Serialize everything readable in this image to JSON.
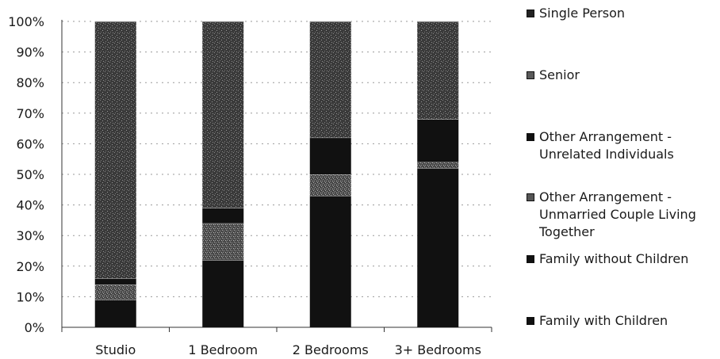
{
  "chart_data": {
    "type": "bar",
    "stacked": true,
    "stack_mode": "percent",
    "categories": [
      "Studio",
      "1 Bedroom",
      "2 Bedrooms",
      "3+ Bedrooms"
    ],
    "series": [
      {
        "name": "Family with Children",
        "values": [
          9,
          22,
          43,
          52
        ],
        "color": "#111111"
      },
      {
        "name": "Family without Children",
        "values": [
          0,
          0,
          0,
          0
        ],
        "color": "#1a1a1a"
      },
      {
        "name": "Other Arrangement - Unmarried Couple Living Together",
        "values": [
          5,
          12,
          7,
          2
        ],
        "color": "#3e3e3e"
      },
      {
        "name": "Other Arrangement - Unrelated Individuals",
        "values": [
          2,
          5,
          12,
          14
        ],
        "color": "#111111"
      },
      {
        "name": "Senior",
        "values": [
          0,
          0,
          0,
          0
        ],
        "color": "#555555"
      },
      {
        "name": "Single Person",
        "values": [
          84,
          61,
          38,
          32
        ],
        "color": "#333333"
      }
    ],
    "yticks": [
      "0%",
      "10%",
      "20%",
      "30%",
      "40%",
      "50%",
      "60%",
      "70%",
      "80%",
      "90%",
      "100%"
    ],
    "ylim": [
      0,
      100
    ],
    "grid": true,
    "legend_position": "right",
    "legend_order": [
      "Single Person",
      "Senior",
      "Other Arrangement - Unrelated Individuals",
      "Other Arrangement - Unmarried Couple Living Together",
      "Family without Children",
      "Family with Children"
    ],
    "legend_lines": [
      [
        "Single Person"
      ],
      [
        "Senior"
      ],
      [
        "Other Arrangement -",
        "Unrelated Individuals"
      ],
      [
        "Other Arrangement -",
        "Unmarried Couple Living",
        "Together"
      ],
      [
        "Family without Children"
      ],
      [
        "Family with Children"
      ]
    ],
    "title": "",
    "xlabel": "",
    "ylabel": ""
  }
}
